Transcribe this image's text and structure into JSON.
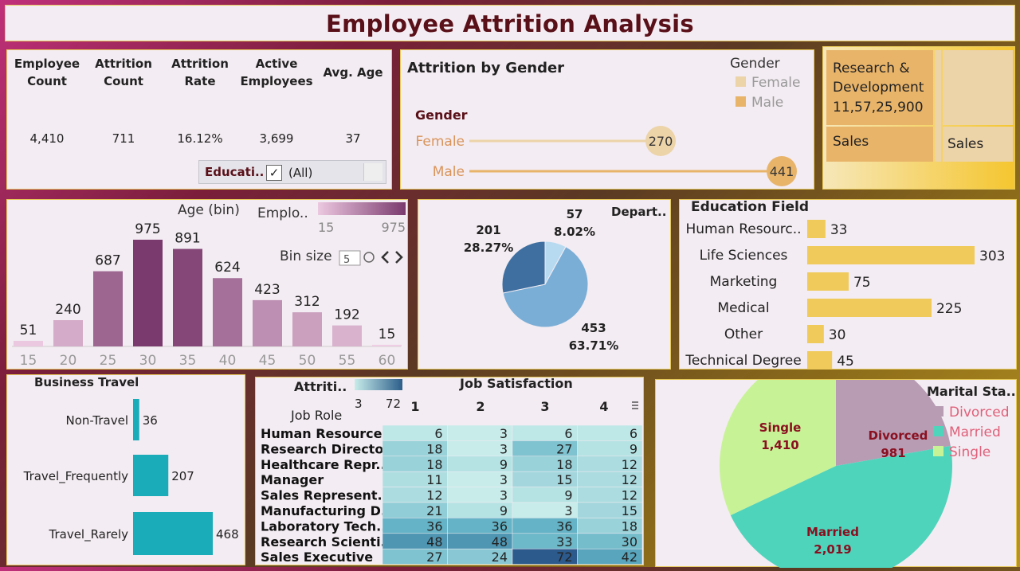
{
  "title": "Employee Attrition Analysis",
  "kpis": [
    {
      "label": "Employee Count",
      "value": "4,410"
    },
    {
      "label": "Attrition Count",
      "value": "711"
    },
    {
      "label": "Attrition Rate",
      "value": "16.12%"
    },
    {
      "label": "Active Employees",
      "value": "3,699"
    },
    {
      "label": "Avg. Age",
      "value": "37"
    }
  ],
  "filter": {
    "label": "Educati..",
    "check": "✓",
    "value": "(All)"
  },
  "colors": {
    "title": "#5a1018",
    "female": "#ecd3a8",
    "male": "#e8b46a",
    "bar_yellow": "#f0ca5a",
    "travel": "#1aacb8",
    "pie_dark": "#3e6fa0",
    "pie_mid": "#7aaed6",
    "pie_light": "#b8daf0"
  },
  "chart_data": [
    {
      "type": "bar",
      "id": "attrition_by_gender",
      "title": "Attrition by Gender",
      "ylabel": "Gender",
      "legend_title": "Gender",
      "legend": [
        "Female",
        "Male"
      ],
      "categories": [
        "Female",
        "Male"
      ],
      "values": [
        270,
        441
      ]
    },
    {
      "type": "treemap",
      "id": "department",
      "tiles": [
        {
          "label": "Research & Development",
          "value_text": "11,57,25,900"
        },
        {
          "label": "Sales"
        },
        {
          "label": "Sales"
        }
      ]
    },
    {
      "type": "bar",
      "id": "age_histogram",
      "title": "Age (bin)",
      "legend_title": "Emplo..",
      "color_range": [
        15,
        975
      ],
      "bin_size_label": "Bin size",
      "bin_size": "5",
      "categories": [
        "15",
        "20",
        "25",
        "30",
        "35",
        "40",
        "45",
        "50",
        "55",
        "60"
      ],
      "values": [
        51,
        240,
        687,
        975,
        891,
        624,
        423,
        312,
        192,
        15
      ]
    },
    {
      "type": "pie",
      "id": "department_pie",
      "legend_title": "Depart..",
      "slices": [
        {
          "value": 57,
          "pct": "8.02%"
        },
        {
          "value": 453,
          "pct": "63.71%"
        },
        {
          "value": 201,
          "pct": "28.27%"
        }
      ]
    },
    {
      "type": "bar",
      "id": "education_field",
      "title": "Education Field",
      "categories": [
        "Human Resourc..",
        "Life Sciences",
        "Marketing",
        "Medical",
        "Other",
        "Technical Degree"
      ],
      "values": [
        33,
        303,
        75,
        225,
        30,
        45
      ]
    },
    {
      "type": "bar",
      "id": "business_travel",
      "title": "Business Travel",
      "categories": [
        "Non-Travel",
        "Travel_Frequently",
        "Travel_Rarely"
      ],
      "values": [
        36,
        207,
        468
      ]
    },
    {
      "type": "heatmap",
      "id": "job_satisfaction",
      "title": "Job Satisfaction",
      "row_header": "Job Role",
      "legend_title": "Attriti..",
      "color_range": [
        3,
        72
      ],
      "columns": [
        "1",
        "2",
        "3",
        "4"
      ],
      "rows": [
        "Human Resources",
        "Research Director",
        "Healthcare Repr..",
        "Manager",
        "Sales Represent..",
        "Manufacturing D..",
        "Laboratory Tech..",
        "Research Scienti..",
        "Sales Executive"
      ],
      "values": [
        [
          6,
          3,
          6,
          6
        ],
        [
          18,
          3,
          27,
          9
        ],
        [
          18,
          9,
          18,
          12
        ],
        [
          11,
          3,
          15,
          12
        ],
        [
          12,
          3,
          9,
          12
        ],
        [
          21,
          9,
          3,
          15
        ],
        [
          36,
          36,
          36,
          18
        ],
        [
          48,
          48,
          33,
          30
        ],
        [
          27,
          24,
          72,
          42
        ]
      ]
    },
    {
      "type": "pie",
      "id": "marital_status",
      "legend_title": "Marital Sta..",
      "slices": [
        {
          "label": "Divorced",
          "value": "981",
          "color": "#b79cb4"
        },
        {
          "label": "Married",
          "value": "2,019",
          "color": "#4fd4bc"
        },
        {
          "label": "Single",
          "value": "1,410",
          "color": "#c7f296"
        }
      ]
    }
  ]
}
